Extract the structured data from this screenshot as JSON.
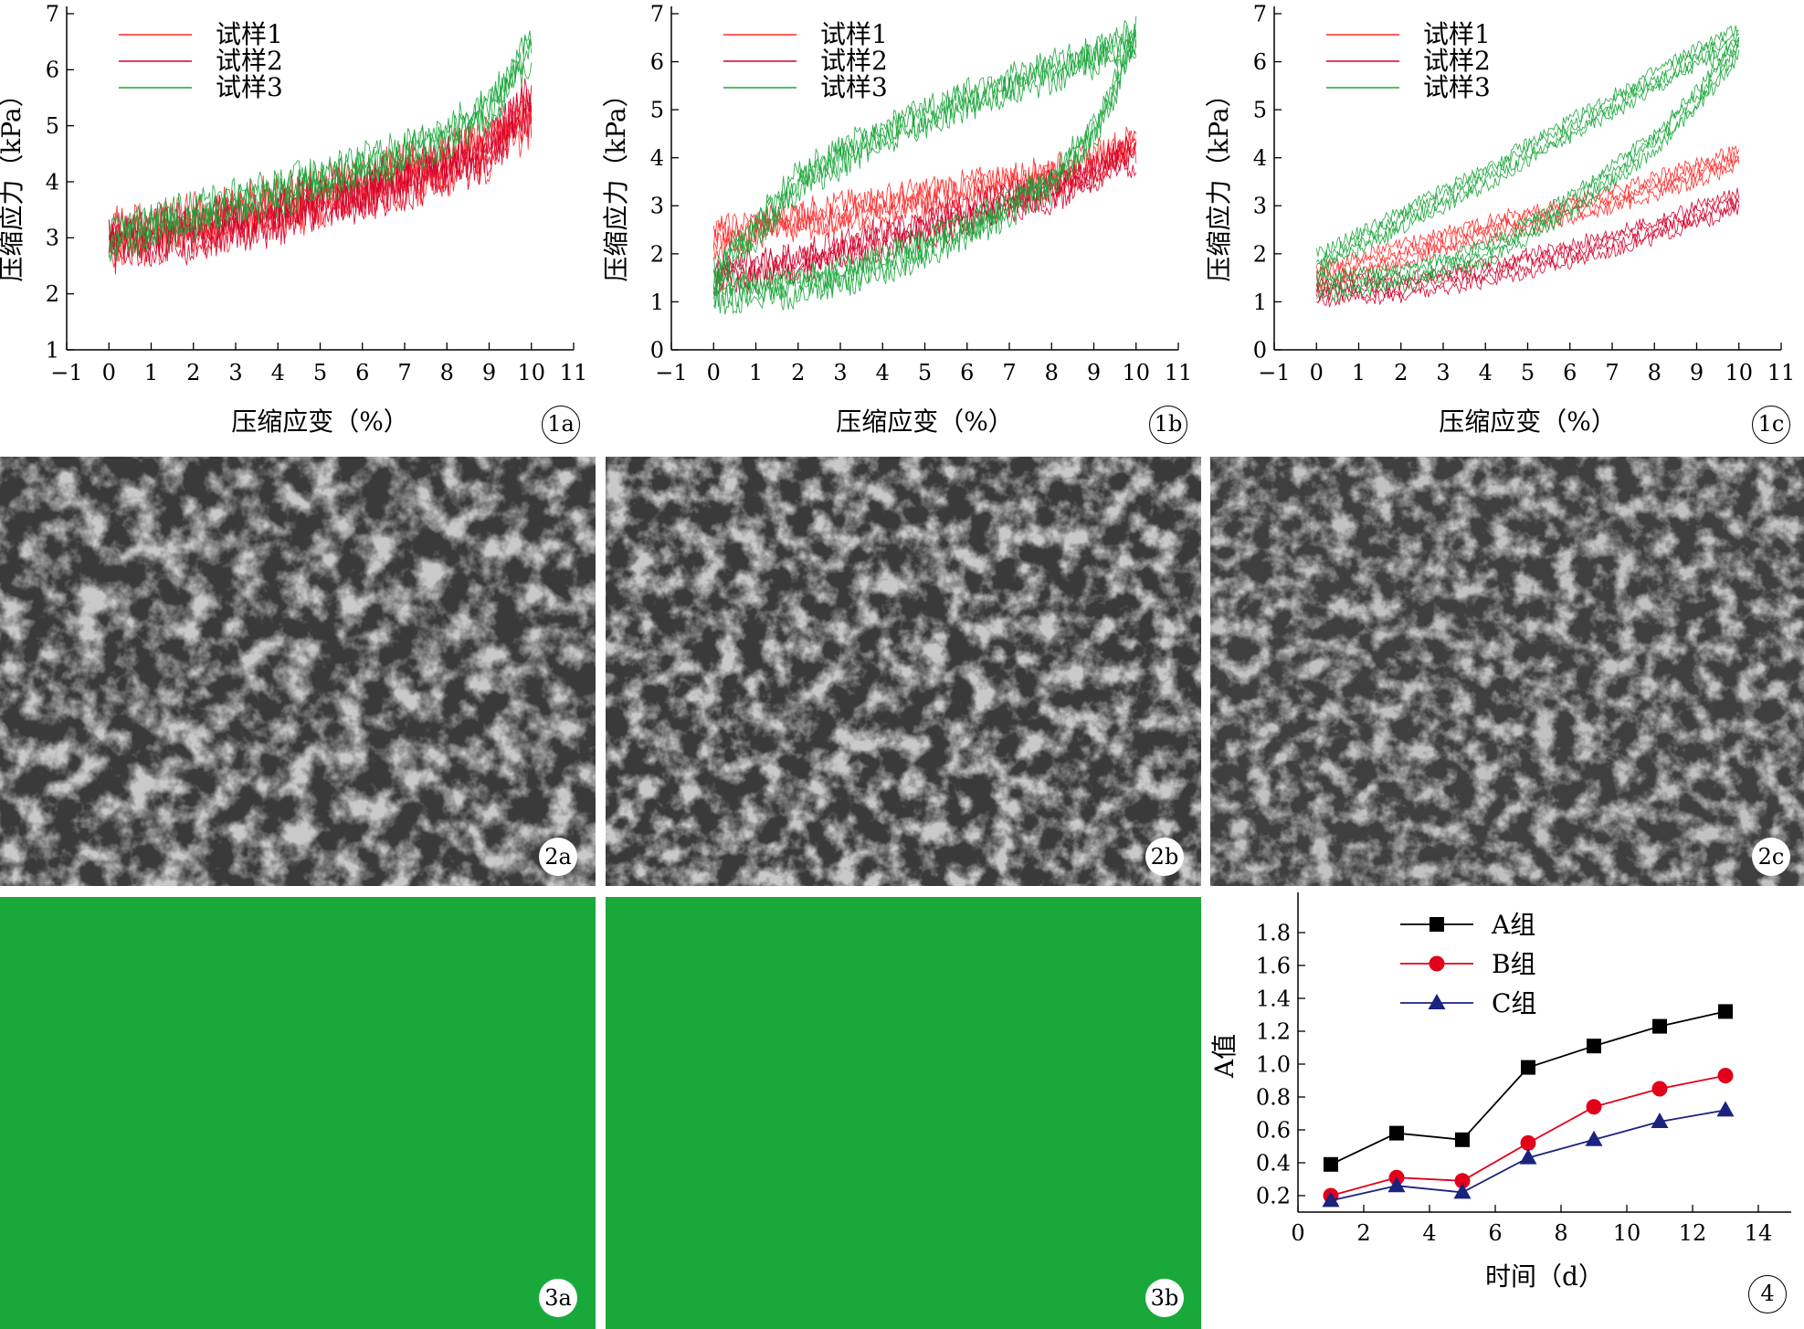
{
  "colors": {
    "red1": "#ff2a2a",
    "red2": "#d3002a",
    "green": "#1aa53a",
    "gel_green": "#18a93a",
    "sem_gray": "#8a8a8a"
  },
  "stress_labels": {
    "y": "压缩应力（kPa）",
    "x": "压缩应变（%）"
  },
  "panel_labels": {
    "p1a": "1a",
    "p1b": "1b",
    "p1c": "1c",
    "p2a": "2a",
    "p2b": "2b",
    "p2c": "2c",
    "p3a": "3a",
    "p3b": "3b",
    "p4": "4"
  },
  "images": {
    "2a": "SEM micrograph (porous scaffold)",
    "2b": "SEM micrograph (porous scaffold)",
    "2c": "SEM micrograph (porous scaffold)",
    "3a": "uniform green fluorescence field",
    "3b": "uniform green fluorescence field"
  },
  "chart_data": [
    {
      "id": "1a",
      "type": "line",
      "xlabel": "压缩应变（%）",
      "ylabel": "压缩应力（kPa）",
      "xlim": [
        -1,
        11
      ],
      "ylim": [
        1,
        7
      ],
      "xticks": [
        -1,
        0,
        1,
        2,
        3,
        4,
        5,
        6,
        7,
        8,
        9,
        10,
        11
      ],
      "yticks": [
        1,
        2,
        3,
        4,
        5,
        6,
        7
      ],
      "legend": "top-left",
      "series": [
        {
          "name": "试样1",
          "color": "#ff2a2a",
          "x": [
            0,
            2,
            4,
            6,
            8,
            9,
            10
          ],
          "y": [
            3.0,
            3.2,
            3.55,
            3.9,
            4.3,
            4.6,
            5.2
          ],
          "noise": 0.45
        },
        {
          "name": "试样2",
          "color": "#d3002a",
          "x": [
            0,
            2,
            4,
            6,
            8,
            9,
            10
          ],
          "y": [
            2.9,
            3.1,
            3.4,
            3.8,
            4.25,
            4.6,
            5.4
          ],
          "noise": 0.4
        },
        {
          "name": "试样3",
          "color": "#1aa53a",
          "x": [
            0,
            2,
            4,
            6,
            8,
            9,
            10
          ],
          "y": [
            3.0,
            3.4,
            3.8,
            4.25,
            4.8,
            5.3,
            6.4
          ],
          "noise": 0.3
        }
      ]
    },
    {
      "id": "1b",
      "type": "line",
      "xlabel": "压缩应变（%）",
      "ylabel": "压缩应力（kPa）",
      "xlim": [
        -1,
        11
      ],
      "ylim": [
        0,
        7
      ],
      "xticks": [
        -1,
        0,
        1,
        2,
        3,
        4,
        5,
        6,
        7,
        8,
        9,
        10,
        11
      ],
      "yticks": [
        0,
        1,
        2,
        3,
        4,
        5,
        6,
        7
      ],
      "legend": "top-left",
      "series": [
        {
          "name": "试样1",
          "color": "#ff2a2a",
          "x": [
            0,
            2,
            4,
            6,
            8,
            9,
            10
          ],
          "y": [
            2.3,
            2.7,
            3.0,
            3.3,
            3.6,
            3.9,
            4.3
          ],
          "noise": 0.3
        },
        {
          "name": "试样2",
          "color": "#d3002a",
          "x": [
            0,
            2,
            4,
            6,
            8,
            9,
            10
          ],
          "y": [
            1.5,
            1.8,
            2.3,
            2.8,
            3.3,
            3.7,
            4.1
          ],
          "noise": 0.3
        },
        {
          "name": "试样3",
          "color": "#1aa53a",
          "x": [
            0,
            2,
            4,
            6,
            8,
            9,
            10
          ],
          "y": [
            1.2,
            1.3,
            1.8,
            2.5,
            3.5,
            4.5,
            6.5
          ],
          "noise": 0.3
        },
        {
          "name": "",
          "color": "#1aa53a",
          "x": [
            0,
            2,
            4,
            6,
            8,
            9,
            10
          ],
          "y": [
            1.5,
            3.5,
            4.5,
            5.2,
            5.8,
            6.1,
            6.5
          ],
          "noise": 0.3
        }
      ]
    },
    {
      "id": "1c",
      "type": "line",
      "xlabel": "压缩应变（%）",
      "ylabel": "压缩应力（kPa）",
      "xlim": [
        -1,
        11
      ],
      "ylim": [
        0,
        7
      ],
      "xticks": [
        -1,
        0,
        1,
        2,
        3,
        4,
        5,
        6,
        7,
        8,
        9,
        10,
        11
      ],
      "yticks": [
        0,
        1,
        2,
        3,
        4,
        5,
        6,
        7
      ],
      "legend": "top-left",
      "series": [
        {
          "name": "试样1",
          "color": "#ff2a2a",
          "x": [
            0,
            2,
            4,
            6,
            8,
            9,
            10
          ],
          "y": [
            1.5,
            2.0,
            2.5,
            2.9,
            3.4,
            3.7,
            4.0
          ],
          "noise": 0.15
        },
        {
          "name": "试样2",
          "color": "#d3002a",
          "x": [
            0,
            2,
            4,
            6,
            8,
            9,
            10
          ],
          "y": [
            1.2,
            1.3,
            1.6,
            2.0,
            2.5,
            2.8,
            3.1
          ],
          "noise": 0.15
        },
        {
          "name": "试样3",
          "color": "#1aa53a",
          "x": [
            0,
            2,
            4,
            6,
            8,
            9,
            10
          ],
          "y": [
            1.3,
            1.5,
            2.0,
            3.0,
            4.3,
            5.2,
            6.3
          ],
          "noise": 0.15
        },
        {
          "name": "",
          "color": "#1aa53a",
          "x": [
            0,
            2,
            4,
            6,
            8,
            9,
            10
          ],
          "y": [
            1.8,
            2.7,
            3.6,
            4.6,
            5.6,
            6.1,
            6.5
          ],
          "noise": 0.15
        }
      ]
    },
    {
      "id": "4",
      "type": "line",
      "xlabel": "时间（d）",
      "ylabel": "A值",
      "xlim": [
        0,
        15
      ],
      "ylim": [
        0.1,
        2.0
      ],
      "xticks": [
        0,
        2,
        4,
        6,
        8,
        10,
        12,
        14
      ],
      "yticks": [
        0.2,
        0.4,
        0.6,
        0.8,
        1.0,
        1.2,
        1.4,
        1.6,
        1.8
      ],
      "ytick_labels": [
        "0.2",
        "0.4",
        "0.6",
        "0.8",
        "1.0",
        "1.2",
        "1.4",
        "1.6",
        "1.8"
      ],
      "legend": "top-left",
      "series": [
        {
          "name": "A组",
          "color": "#000000",
          "marker": "square",
          "x": [
            1,
            3,
            5,
            7,
            9,
            11,
            13
          ],
          "y": [
            0.39,
            0.58,
            0.54,
            0.98,
            1.11,
            1.23,
            1.32
          ]
        },
        {
          "name": "B组",
          "color": "#e2001a",
          "marker": "circle",
          "x": [
            1,
            3,
            5,
            7,
            9,
            11,
            13
          ],
          "y": [
            0.2,
            0.31,
            0.29,
            0.52,
            0.74,
            0.85,
            0.93
          ]
        },
        {
          "name": "C组",
          "color": "#1a237e",
          "marker": "triangle",
          "x": [
            1,
            3,
            5,
            7,
            9,
            11,
            13
          ],
          "y": [
            0.17,
            0.26,
            0.22,
            0.43,
            0.54,
            0.65,
            0.72
          ]
        }
      ]
    }
  ]
}
